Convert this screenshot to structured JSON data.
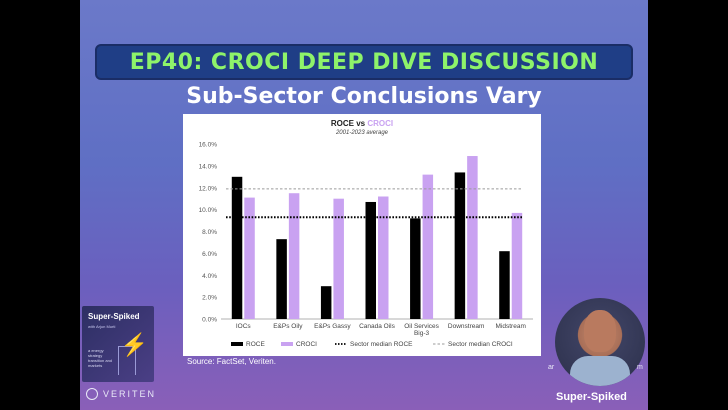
{
  "banner": {
    "text": "EP40: CROCI DEEP DIVE DISCUSSION"
  },
  "slide": {
    "title": "Sub-Sector Conclusions Vary",
    "source": "Source: FactSet, Veriten."
  },
  "podcast_art": {
    "title": "Super-Spiked",
    "subtitle": "with Arjun Murti",
    "tagline": "a energy strategy transition and markets"
  },
  "branding": {
    "logo_text": "VERITEN",
    "host_caption": "Super-Spiked",
    "corner_left": "ar",
    "corner_right": "m"
  },
  "colors": {
    "roce": "#000000",
    "croci": "#c9a2f1",
    "croci_title": "#c9a2f1",
    "croci_median": "#9b9b9b"
  },
  "chart_data": {
    "type": "bar",
    "title_prefix": "ROCE vs ",
    "title_highlight": "CROCI",
    "subtitle": "2001-2023 average",
    "categories": [
      "IOCs",
      "E&Ps Oily",
      "E&Ps Gassy",
      "Canada Oils",
      "Oil Services Big-3",
      "Downstream",
      "Midstream"
    ],
    "category_lines": [
      [
        "IOCs"
      ],
      [
        "E&Ps Oily"
      ],
      [
        "E&Ps Gassy"
      ],
      [
        "Canada Oils"
      ],
      [
        "Oil Services",
        "Big-3"
      ],
      [
        "Downstream"
      ],
      [
        "Midstream"
      ]
    ],
    "series": [
      {
        "name": "ROCE",
        "values": [
          13.0,
          7.3,
          3.0,
          10.7,
          9.2,
          13.4,
          6.2
        ]
      },
      {
        "name": "CROCI",
        "values": [
          11.1,
          11.5,
          11.0,
          11.2,
          13.2,
          14.9,
          9.7
        ]
      }
    ],
    "reference_lines": [
      {
        "name": "Sector median ROCE",
        "value": 9.3
      },
      {
        "name": "Sector median CROCI",
        "value": 11.9
      }
    ],
    "yticks": [
      "0.0%",
      "2.0%",
      "4.0%",
      "6.0%",
      "8.0%",
      "10.0%",
      "12.0%",
      "14.0%",
      "16.0%"
    ],
    "ylim": [
      0,
      16
    ],
    "legend": [
      "ROCE",
      "CROCI",
      "Sector median ROCE",
      "Sector median CROCI"
    ],
    "legend_position": "bottom",
    "grid": false
  }
}
